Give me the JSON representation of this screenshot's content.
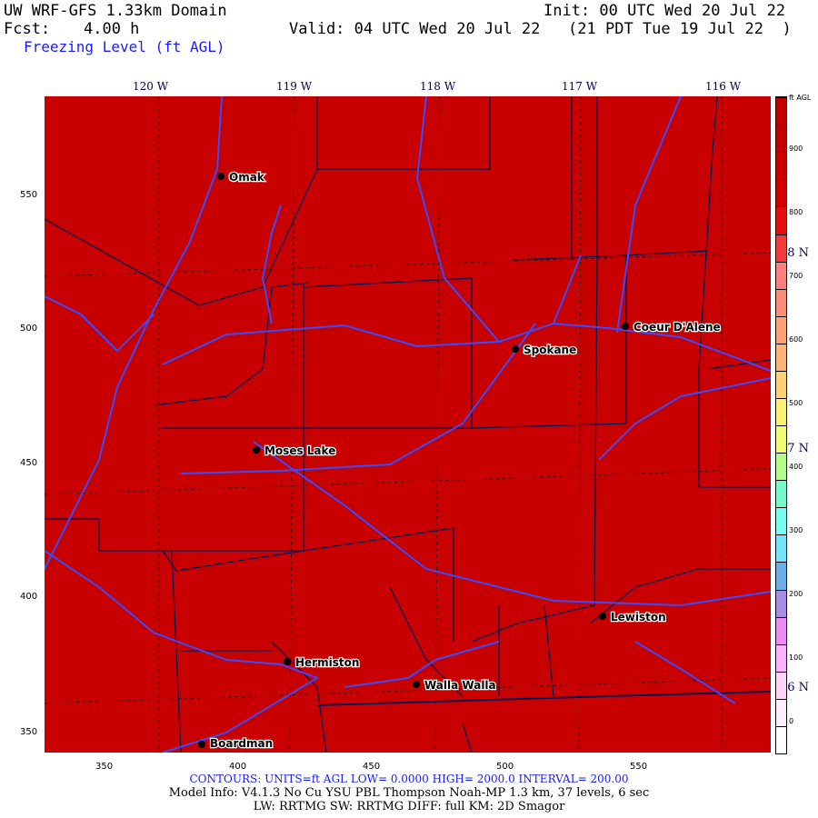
{
  "header": {
    "title": "UW WRF-GFS 1.33km Domain",
    "init": "Init: 00 UTC Wed 20 Jul 22",
    "fcst_label": "Fcst:",
    "fcst_value": "4.00 h",
    "valid": "Valid: 04 UTC Wed 20 Jul 22   (21 PDT Tue 19 Jul 22  )",
    "field": "Freezing Level (ft AGL)"
  },
  "map": {
    "fill_color": "#c80000",
    "river_color": "#3a4cff",
    "border_color": "#0a1050",
    "lon_labels": [
      "120 W",
      "119 W",
      "118 W",
      "117 W",
      "116 W"
    ],
    "lat_labels": [
      "48 N",
      "47 N",
      "46 N"
    ],
    "y_ticks": [
      "550",
      "500",
      "450",
      "400",
      "350"
    ],
    "x_ticks": [
      "350",
      "400",
      "450",
      "500",
      "550"
    ],
    "cities": [
      {
        "name": "Omak"
      },
      {
        "name": "Spokane"
      },
      {
        "name": "Coeur D'Alene"
      },
      {
        "name": "Moses Lake"
      },
      {
        "name": "Lewiston"
      },
      {
        "name": "Hermiston"
      },
      {
        "name": "Walla Walla"
      },
      {
        "name": "Boardman"
      }
    ]
  },
  "colorbar": {
    "units": "ft AGL",
    "labels": [
      "0",
      "100",
      "200",
      "300",
      "400",
      "500",
      "600",
      "700",
      "800",
      "900"
    ],
    "colors": [
      "#ffffff",
      "#ffeefc",
      "#ffd2fa",
      "#f8b4f8",
      "#ec8cf4",
      "#a78ce6",
      "#6eaee8",
      "#78e2f8",
      "#78fcee",
      "#78f8c8",
      "#b4fc8c",
      "#f0fc78",
      "#fcf078",
      "#fcd278",
      "#fcb478",
      "#fca078",
      "#fc8c78",
      "#fc8080",
      "#f03c3c",
      "#e01010",
      "#d00000",
      "#c80000",
      "#c00000",
      "#c00000"
    ]
  },
  "footer": {
    "contours": "CONTOURS:  UNITS=ft AGL  LOW=   0.0000      HIGH=  2000.0      INTERVAL=    200.00",
    "model_info": "Model Info: V4.1.3    No Cu    YSU PBL  Thompson     Noah-MP    1.3 km,  37 levels,     6 sec",
    "physics": "LW: RRTMG SW: RRTMG    DIFF: full    KM: 2D Smagor"
  }
}
